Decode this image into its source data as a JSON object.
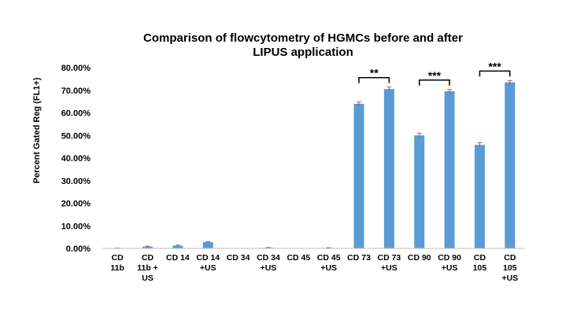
{
  "chart_data": {
    "type": "bar",
    "title_line1": "Comparison of flowcytometry of HGMCs before and after",
    "title_line2": "LIPUS application",
    "ylabel": "Percent Gated Reg (FL1+)",
    "xlabel": "",
    "ylim": [
      0,
      80
    ],
    "y_ticks": [
      "0.00%",
      "10.00%",
      "20.00%",
      "30.00%",
      "40.00%",
      "50.00%",
      "60.00%",
      "70.00%",
      "80.00%"
    ],
    "grid": false,
    "legend": "none",
    "bar_color": "#5b9bd5",
    "error_color": "#c0504d",
    "categories": [
      [
        "CD",
        "11b"
      ],
      [
        "CD",
        "11b +",
        "US"
      ],
      [
        "CD 14"
      ],
      [
        "CD 14",
        "+US"
      ],
      [
        "CD 34"
      ],
      [
        "CD 34",
        "+US"
      ],
      [
        "CD 45"
      ],
      [
        "CD 45",
        "+US"
      ],
      [
        "CD 73"
      ],
      [
        "CD 73",
        "+US"
      ],
      [
        "CD 90"
      ],
      [
        "CD 90",
        "+US"
      ],
      [
        "CD",
        "105"
      ],
      [
        "CD",
        "105",
        "+US"
      ]
    ],
    "values": [
      0.1,
      0.8,
      1.2,
      2.8,
      0.0,
      0.3,
      0.0,
      0.2,
      64.0,
      70.5,
      50.0,
      69.5,
      45.8,
      73.5
    ],
    "errors": [
      0.05,
      0.2,
      0.3,
      0.2,
      0.0,
      0.1,
      0.0,
      0.1,
      0.8,
      0.9,
      1.0,
      0.8,
      1.0,
      0.8
    ],
    "significance": [
      {
        "from": 8,
        "to": 9,
        "label": "**"
      },
      {
        "from": 10,
        "to": 11,
        "label": "***"
      },
      {
        "from": 12,
        "to": 13,
        "label": "***"
      }
    ]
  }
}
